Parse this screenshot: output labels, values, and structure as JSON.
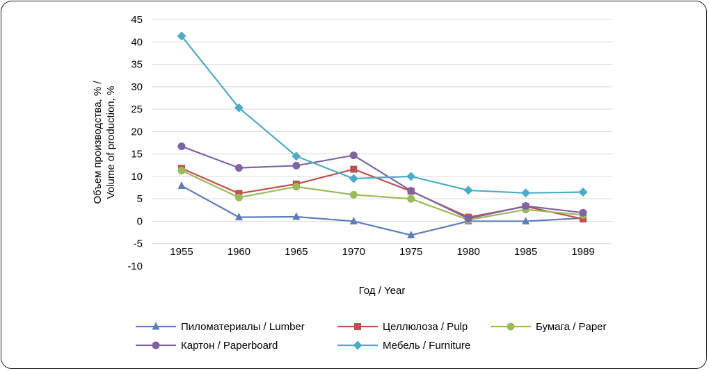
{
  "chart_data": {
    "type": "line",
    "categories": [
      "1955",
      "1960",
      "1965",
      "1970",
      "1975",
      "1980",
      "1985",
      "1989"
    ],
    "ylim": [
      -10,
      45
    ],
    "yticks": [
      "45",
      "40",
      "35",
      "30",
      "25",
      "20",
      "15",
      "10",
      "5",
      "0",
      "-5",
      "-10"
    ],
    "xlabel": "Год / Year",
    "ylabel_line1": "Объем производства, % /",
    "ylabel_line2": "Volume of production, %",
    "grid": true,
    "legend_position": "bottom",
    "series": [
      {
        "name": "Пиломатериалы / Lumber",
        "color": "#5b7db8",
        "marker": "triangle",
        "values": [
          7.9,
          0.9,
          1.0,
          0.0,
          -3.1,
          0.0,
          0.0,
          0.7
        ]
      },
      {
        "name": "Целлюлоза / Pulp",
        "color": "#c0504d",
        "marker": "square",
        "values": [
          11.8,
          6.2,
          8.3,
          11.6,
          6.7,
          0.9,
          3.3,
          0.5
        ]
      },
      {
        "name": "Бумага / Paper",
        "color": "#9bbb59",
        "marker": "circle",
        "values": [
          11.3,
          5.3,
          7.7,
          5.9,
          5.0,
          0.3,
          2.6,
          1.4
        ]
      },
      {
        "name": "Картон / Paperboard",
        "color": "#8064a2",
        "marker": "circle",
        "values": [
          16.7,
          11.9,
          12.4,
          14.7,
          6.8,
          0.6,
          3.4,
          1.9
        ]
      },
      {
        "name": "Мебель / Furniture",
        "color": "#4bacc6",
        "marker": "diamond",
        "values": [
          41.3,
          25.3,
          14.5,
          9.5,
          10.0,
          6.9,
          6.3,
          6.5
        ]
      }
    ]
  }
}
